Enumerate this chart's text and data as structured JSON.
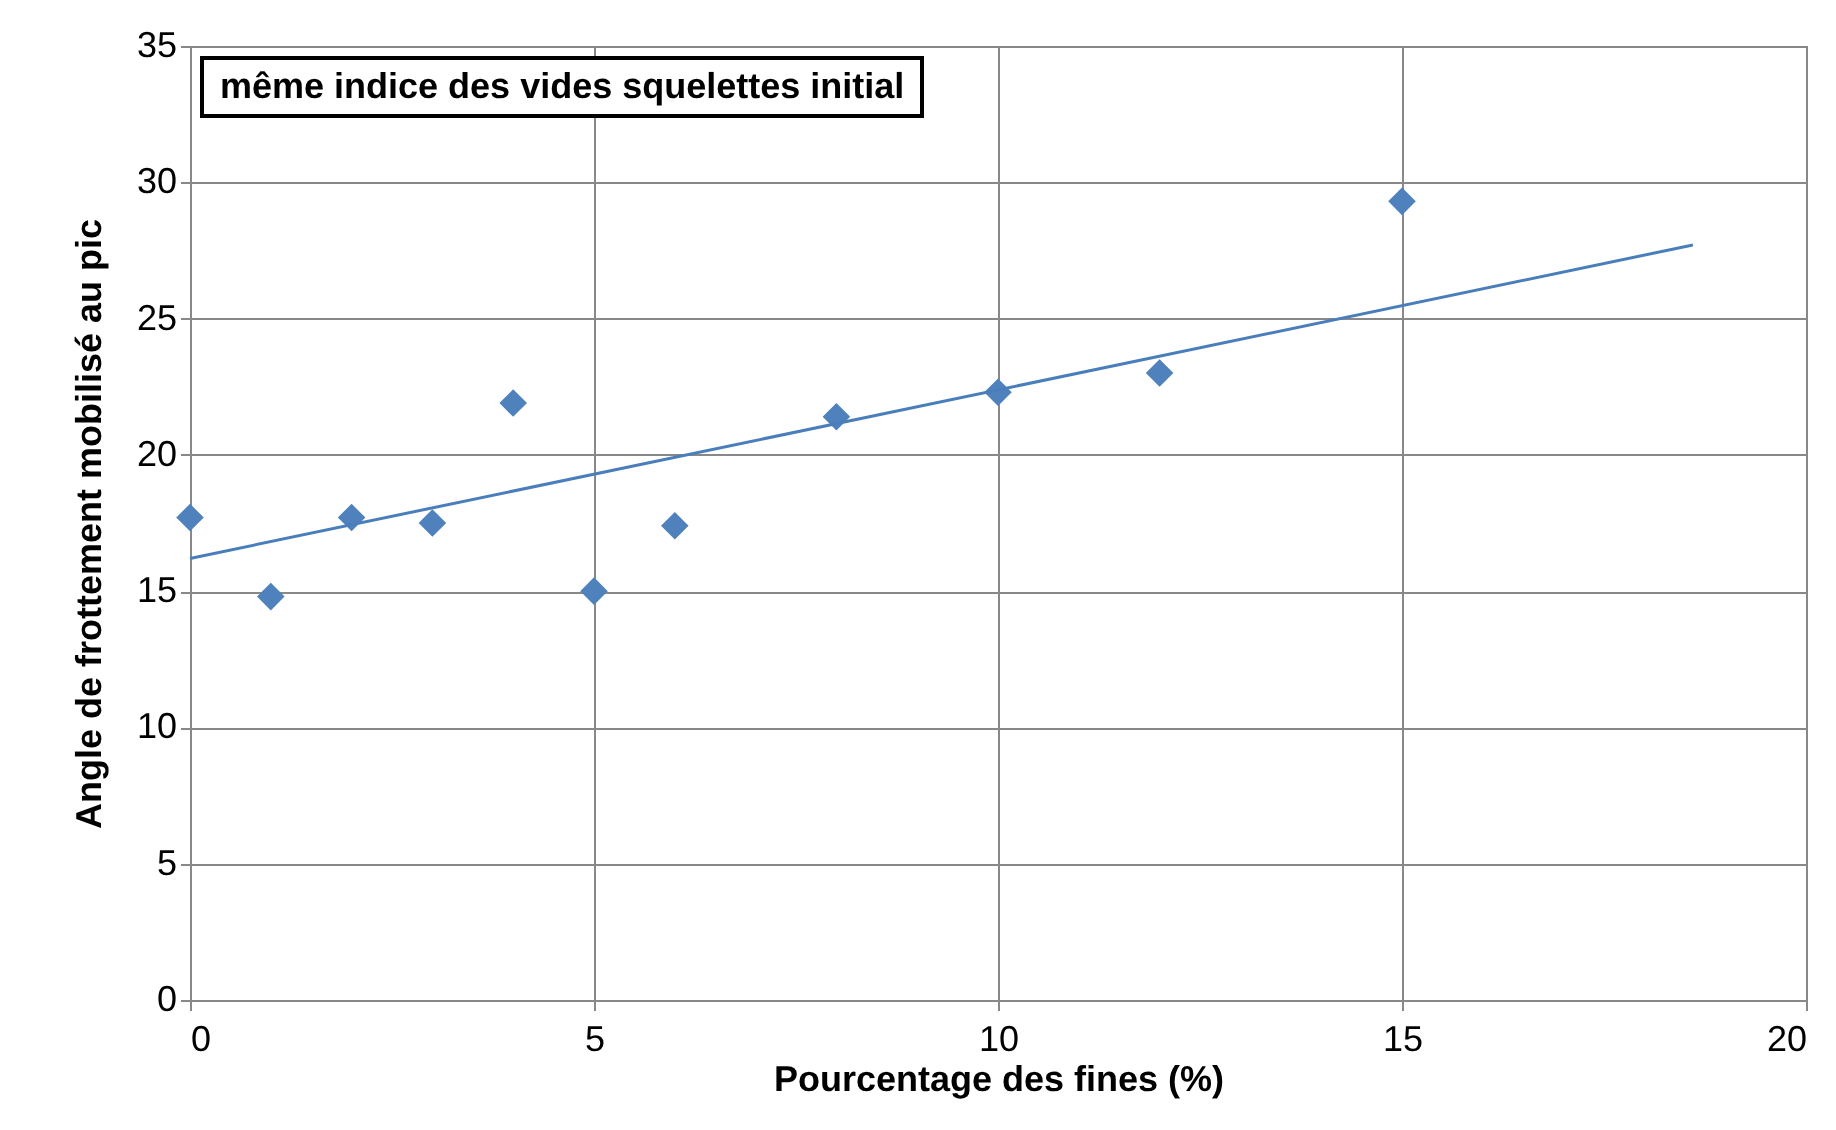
{
  "chart_data": {
    "type": "scatter",
    "xlabel": "Pourcentage des fines (%)",
    "ylabel": "Angle de frottement mobilisé au pic",
    "annotations": [
      "même indice des vides squelettes initial"
    ],
    "x": [
      0,
      1,
      2,
      3,
      4,
      5,
      6,
      8,
      10,
      12,
      15
    ],
    "series": [
      {
        "color": "#4f81bd",
        "values": [
          17.7,
          14.8,
          17.7,
          17.5,
          21.9,
          15.0,
          17.4,
          21.4,
          22.3,
          23.0,
          29.3
        ]
      },
      {
        "type": "line",
        "marker": "none",
        "color": "#4a7ebb",
        "x": [
          0,
          18.6
        ],
        "values": [
          16.2,
          27.7
        ]
      }
    ],
    "xlim": [
      0,
      20
    ],
    "xticks": [
      0,
      5,
      10,
      15,
      20
    ],
    "ylim": [
      0,
      35
    ],
    "yticks": [
      0,
      5,
      10,
      15,
      20,
      25,
      30,
      35
    ],
    "grid": true,
    "marker": "diamond",
    "line_style": "solid"
  }
}
